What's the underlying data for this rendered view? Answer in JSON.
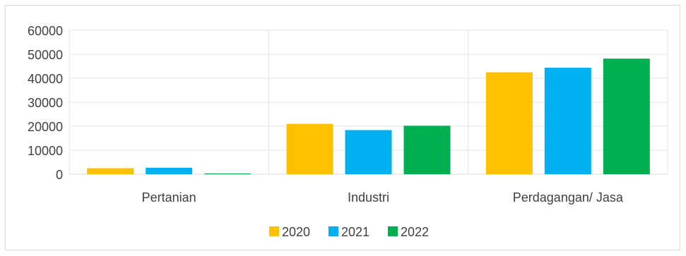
{
  "chart_data": {
    "type": "bar",
    "title": "",
    "xlabel": "",
    "ylabel": "",
    "categories": [
      "Pertanian",
      "Industri",
      "Perdagangan/ Jasa"
    ],
    "series": [
      {
        "name": "2020",
        "color": "#FFC000",
        "values": [
          2500,
          21000,
          42500
        ]
      },
      {
        "name": "2021",
        "color": "#00B0F0",
        "values": [
          2700,
          18400,
          44400
        ]
      },
      {
        "name": "2022",
        "color": "#00B050",
        "values": [
          300,
          20200,
          48200
        ]
      }
    ],
    "ylim": [
      0,
      60000
    ],
    "yticks": [
      "0",
      "10000",
      "20000",
      "30000",
      "40000",
      "50000",
      "60000"
    ],
    "grid": true,
    "legend": "bottom"
  }
}
